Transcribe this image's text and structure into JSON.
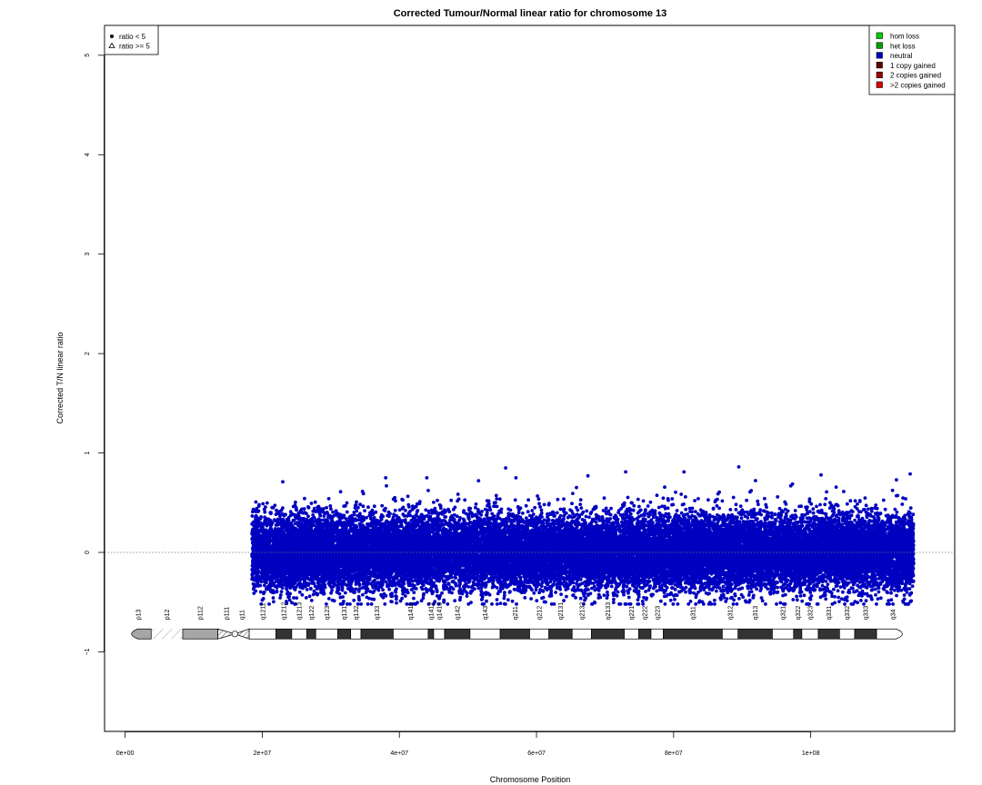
{
  "chart_data": {
    "type": "scatter",
    "title": "Corrected Tumour/Normal linear ratio for chromosome  13",
    "xlabel": "Chromosome Position",
    "ylabel": "Corrected T/N linear ratio",
    "xlim": [
      -3000000,
      121000000
    ],
    "ylim": [
      -1.8,
      5.3
    ],
    "x_ticks": [
      0,
      20000000,
      40000000,
      60000000,
      80000000,
      100000000
    ],
    "x_tick_labels": [
      "0e+00",
      "2e+07",
      "4e+07",
      "6e+07",
      "8e+07",
      "1e+08"
    ],
    "y_ticks": [
      -1,
      0,
      1,
      2,
      3,
      4,
      5
    ],
    "y_tick_labels": [
      "−1",
      "0",
      "1",
      "2",
      "3",
      "4",
      "5"
    ],
    "reference_line_y": 0,
    "grid": false,
    "series": [
      {
        "name": "neutral",
        "color": "#0000c0",
        "marker": "filled-circle",
        "x_range": [
          18500000,
          115000000
        ],
        "y_center": 0.0,
        "y_core_range": [
          -0.3,
          0.3
        ],
        "y_extreme_max": 0.86,
        "y_extreme_min": -0.52,
        "notable_points": [
          {
            "x": 23000000,
            "y": 0.71
          },
          {
            "x": 38000000,
            "y": 0.75
          },
          {
            "x": 44000000,
            "y": 0.75
          },
          {
            "x": 55500000,
            "y": 0.85
          },
          {
            "x": 57000000,
            "y": 0.75
          },
          {
            "x": 67500000,
            "y": 0.77
          },
          {
            "x": 73000000,
            "y": 0.81
          },
          {
            "x": 81500000,
            "y": 0.81
          },
          {
            "x": 89500000,
            "y": 0.86
          },
          {
            "x": 101500000,
            "y": 0.78
          },
          {
            "x": 112500000,
            "y": 0.73
          },
          {
            "x": 114500000,
            "y": 0.79
          },
          {
            "x": 24000000,
            "y": -0.48
          },
          {
            "x": 46500000,
            "y": -0.48
          },
          {
            "x": 113500000,
            "y": -0.5
          }
        ]
      }
    ],
    "legend_markers": {
      "placement": "top-left",
      "entries": [
        {
          "symbol": "filled-circle",
          "label": "ratio < 5"
        },
        {
          "symbol": "open-triangle",
          "label": "ratio >= 5"
        }
      ]
    },
    "legend_states": {
      "placement": "top-right",
      "entries": [
        {
          "label": "hom loss",
          "color": "#00d000"
        },
        {
          "label": "het loss",
          "color": "#00a000"
        },
        {
          "label": "neutral",
          "color": "#0000c0"
        },
        {
          "label": "1 copy gained",
          "color": "#600000"
        },
        {
          "label": "2 copies gained",
          "color": "#a00000"
        },
        {
          "label": ">2 copies gained",
          "color": "#e00000"
        }
      ]
    },
    "ideogram": {
      "y": -0.82,
      "bands": [
        {
          "name": "p13",
          "start": 0,
          "end": 3800000,
          "stain": "gvar"
        },
        {
          "name": "p12",
          "start": 3800000,
          "end": 8400000,
          "stain": "stalk"
        },
        {
          "name": "p11.2",
          "start": 8400000,
          "end": 13500000,
          "stain": "gvar"
        },
        {
          "name": "p11.1",
          "start": 13500000,
          "end": 16000000,
          "stain": "acen"
        },
        {
          "name": "q11",
          "start": 16000000,
          "end": 18100000,
          "stain": "acen"
        },
        {
          "name": "q12.11",
          "start": 18100000,
          "end": 22000000,
          "stain": "gneg"
        },
        {
          "name": "q12.12",
          "start": 22000000,
          "end": 24300000,
          "stain": "gpos"
        },
        {
          "name": "q12.13",
          "start": 24300000,
          "end": 26500000,
          "stain": "gneg"
        },
        {
          "name": "q12.2",
          "start": 26500000,
          "end": 27800000,
          "stain": "gpos"
        },
        {
          "name": "q12.3",
          "start": 27800000,
          "end": 31000000,
          "stain": "gneg"
        },
        {
          "name": "q13.1",
          "start": 31000000,
          "end": 32900000,
          "stain": "gpos"
        },
        {
          "name": "q13.2",
          "start": 32900000,
          "end": 34400000,
          "stain": "gneg"
        },
        {
          "name": "q13.3",
          "start": 34400000,
          "end": 39100000,
          "stain": "gpos"
        },
        {
          "name": "q14.11",
          "start": 39100000,
          "end": 44200000,
          "stain": "gneg"
        },
        {
          "name": "q14.12",
          "start": 44200000,
          "end": 45000000,
          "stain": "gpos"
        },
        {
          "name": "q14.13",
          "start": 45000000,
          "end": 46600000,
          "stain": "gneg"
        },
        {
          "name": "q14.2",
          "start": 46600000,
          "end": 50300000,
          "stain": "gpos"
        },
        {
          "name": "q14.3",
          "start": 50300000,
          "end": 54700000,
          "stain": "gneg"
        },
        {
          "name": "q21.1",
          "start": 54700000,
          "end": 59000000,
          "stain": "gpos"
        },
        {
          "name": "q21.2",
          "start": 59000000,
          "end": 61800000,
          "stain": "gneg"
        },
        {
          "name": "q21.31",
          "start": 61800000,
          "end": 65200000,
          "stain": "gpos"
        },
        {
          "name": "q21.32",
          "start": 65200000,
          "end": 68000000,
          "stain": "gneg"
        },
        {
          "name": "q21.33",
          "start": 68000000,
          "end": 72800000,
          "stain": "gpos"
        },
        {
          "name": "q22.1",
          "start": 72800000,
          "end": 74900000,
          "stain": "gneg"
        },
        {
          "name": "q22.2",
          "start": 74900000,
          "end": 76700000,
          "stain": "gpos"
        },
        {
          "name": "q22.3",
          "start": 76700000,
          "end": 78500000,
          "stain": "gneg"
        },
        {
          "name": "q31.1",
          "start": 78500000,
          "end": 87100000,
          "stain": "gpos"
        },
        {
          "name": "q31.2",
          "start": 87100000,
          "end": 89400000,
          "stain": "gneg"
        },
        {
          "name": "q31.3",
          "start": 89400000,
          "end": 94400000,
          "stain": "gpos"
        },
        {
          "name": "q32.1",
          "start": 94400000,
          "end": 97500000,
          "stain": "gneg"
        },
        {
          "name": "q32.2",
          "start": 97500000,
          "end": 98700000,
          "stain": "gpos"
        },
        {
          "name": "q32.3",
          "start": 98700000,
          "end": 101100000,
          "stain": "gneg"
        },
        {
          "name": "q33.1",
          "start": 101100000,
          "end": 104200000,
          "stain": "gpos"
        },
        {
          "name": "q33.2",
          "start": 104200000,
          "end": 106400000,
          "stain": "gneg"
        },
        {
          "name": "q33.3",
          "start": 106400000,
          "end": 109600000,
          "stain": "gpos"
        },
        {
          "name": "q34",
          "start": 109600000,
          "end": 114300000,
          "stain": "gneg"
        }
      ]
    }
  }
}
